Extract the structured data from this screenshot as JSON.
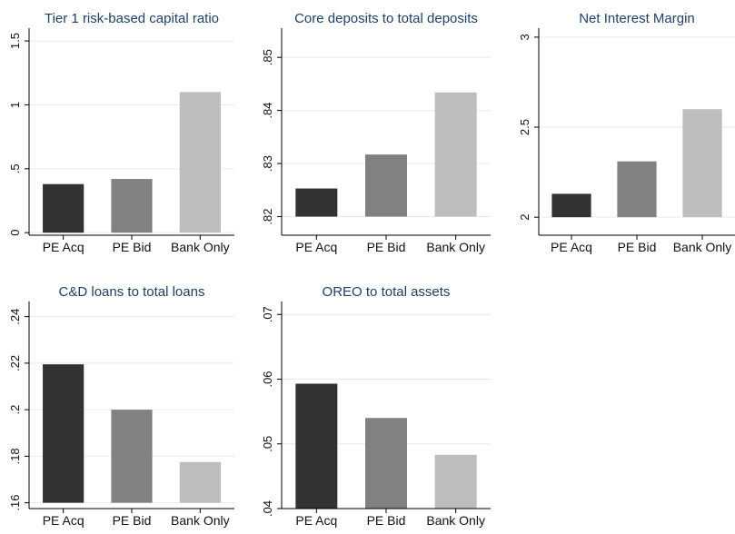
{
  "colors": {
    "bar_fills": [
      "#323232",
      "#818181",
      "#bdbdbd"
    ],
    "title_color": "#1f3f66",
    "text_color": "#111111",
    "gridline_color": "#e6eaee",
    "axis_color": "#000000"
  },
  "chart_data": [
    {
      "type": "bar",
      "title": "Tier 1 risk-based capital ratio",
      "categories": [
        "PE Acq",
        "PE Bid",
        "Bank Only"
      ],
      "values": [
        0.38,
        0.42,
        1.1
      ],
      "yticks": [
        "0",
        ".5",
        "1",
        "1.5"
      ],
      "ylim": [
        -0.02,
        1.6
      ],
      "grid": true
    },
    {
      "type": "bar",
      "title": "Core deposits to total deposits",
      "categories": [
        "PE Acq",
        "PE Bid",
        "Bank Only"
      ],
      "values": [
        0.8253,
        0.8317,
        0.8434
      ],
      "yticks": [
        ".82",
        ".83",
        ".84",
        ".85"
      ],
      "ylim": [
        0.8165,
        0.8555
      ],
      "grid": true
    },
    {
      "type": "bar",
      "title": "Net Interest Margin",
      "categories": [
        "PE Acq",
        "PE Bid",
        "Bank Only"
      ],
      "values": [
        2.13,
        2.31,
        2.6
      ],
      "yticks": [
        "2",
        "2.5",
        "3"
      ],
      "ylim": [
        1.9,
        3.05
      ],
      "grid": true
    },
    {
      "type": "bar",
      "title": "C&D loans to total loans",
      "categories": [
        "PE Acq",
        "PE Bid",
        "Bank Only"
      ],
      "values": [
        0.2195,
        0.2,
        0.1775
      ],
      "yticks": [
        ".16",
        ".18",
        ".2",
        ".22",
        ".24"
      ],
      "ylim": [
        0.1575,
        0.2465
      ],
      "grid": true
    },
    {
      "type": "bar",
      "title": "OREO to total assets",
      "categories": [
        "PE Acq",
        "PE Bid",
        "Bank Only"
      ],
      "values": [
        0.0593,
        0.054,
        0.0483
      ],
      "yticks": [
        ".04",
        ".05",
        ".06",
        ".07"
      ],
      "ylim": [
        0.04,
        0.072
      ],
      "grid": true
    }
  ]
}
